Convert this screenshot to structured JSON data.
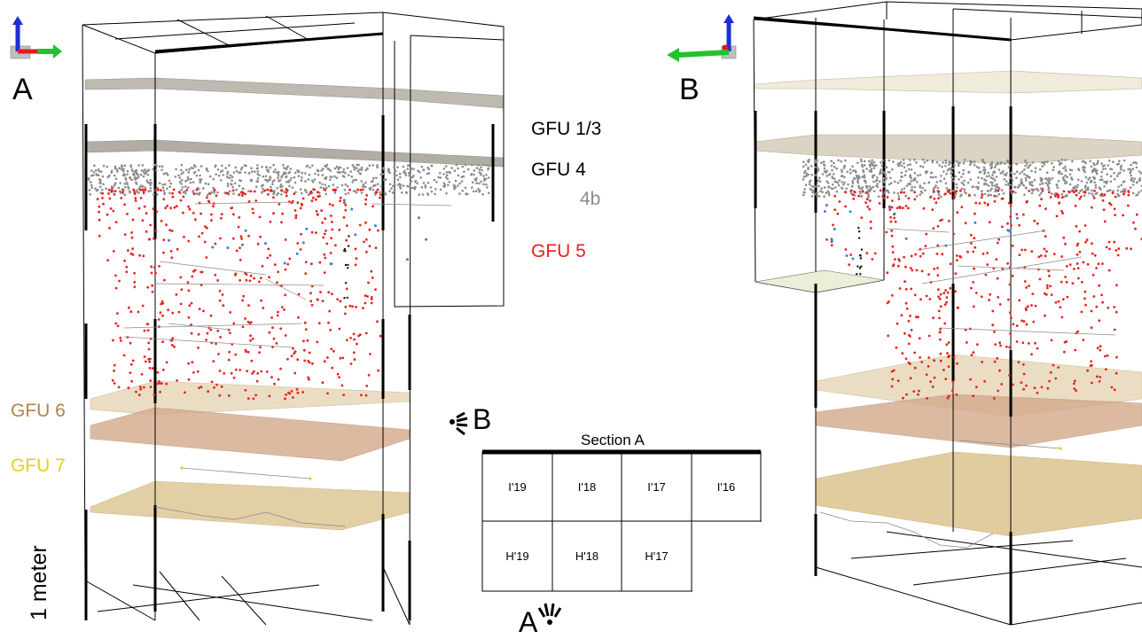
{
  "panels": {
    "left_label": "A",
    "right_label": "B"
  },
  "layers": {
    "gfu13": "GFU 1/3",
    "gfu4": "GFU 4",
    "sub4b": "4b",
    "gfu5": "GFU 5",
    "gfu6": "GFU 6",
    "gfu7": "GFU 7"
  },
  "scale_bar": {
    "label": "1 meter"
  },
  "section_map": {
    "title": "Section A",
    "view_b": "B",
    "view_a": "A",
    "row1": [
      "I'19",
      "I'18",
      "I'17",
      "I'16"
    ],
    "row2": [
      "H'19",
      "H'18",
      "H'17"
    ]
  },
  "colors": {
    "gfu13": "#b7b3a9",
    "gfu4": "#a9a59c",
    "gfu5_points": "#e8221e",
    "gfu4_points": "#8c8c8c",
    "gfu6": "#e7d8b9",
    "gfu6_lower": "#d4a98c",
    "gfu7": "#dcc48f",
    "gfu6_label": "#b2834b",
    "gfu7_label": "#e3d21a",
    "blue_points": "#3a7fd9"
  },
  "icons": [
    "axis-gizmo-icon",
    "eye-view-icon"
  ]
}
